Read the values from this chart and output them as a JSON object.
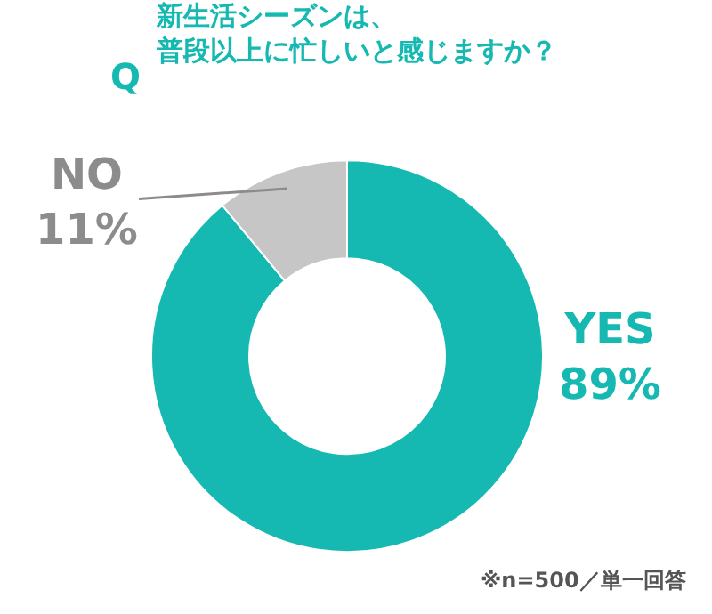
{
  "chart_data": {
    "type": "donut",
    "title": "新生活シーズンは、普段以上に忙しいと感じますか？",
    "value_labels": [
      "89%",
      "11%"
    ],
    "categories": [
      "YES",
      "NO"
    ],
    "values": [
      89,
      11
    ],
    "colors": [
      "#16b9b1",
      "#c6c6c6"
    ],
    "data_labels": true,
    "legend": false,
    "annotations": [
      "Q",
      "※n=500／単一回答"
    ]
  }
}
